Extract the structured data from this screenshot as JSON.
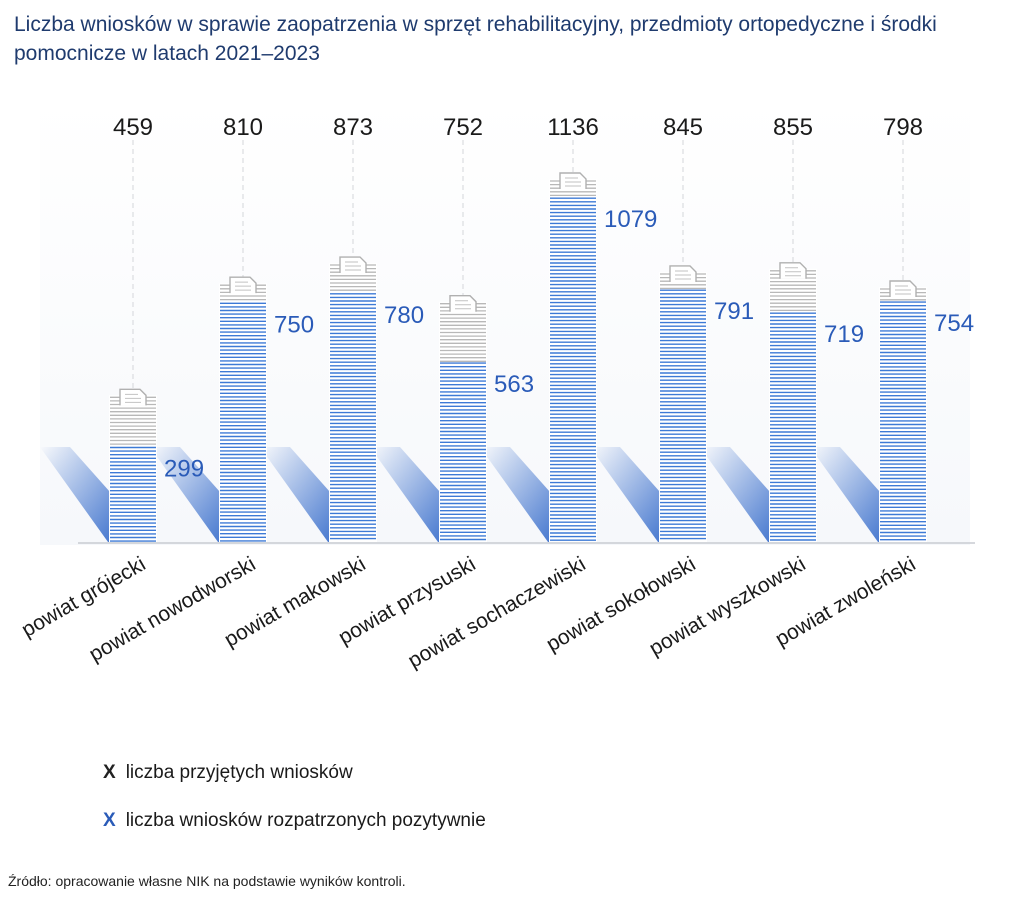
{
  "chart_data": {
    "type": "bar",
    "title": "Liczba wniosków w sprawie zaopatrzenia w sprzęt rehabilitacyjny, przedmioty ortopedyczne i środki pomocnicze w latach 2021–2023",
    "categories": [
      "powiat grójecki",
      "powiat nowodworski",
      "powiat makowski",
      "powiat przysuski",
      "powiat sochaczewiski",
      "powiat sokołowski",
      "powiat wyszkowski",
      "powiat zwoleński"
    ],
    "series": [
      {
        "name": "liczba przyjętych wniosków",
        "values": [
          459,
          810,
          873,
          752,
          1136,
          845,
          855,
          798
        ],
        "color": "#222222"
      },
      {
        "name": "liczba wniosków rozpatrzonych pozytywnie",
        "values": [
          299,
          750,
          780,
          563,
          1079,
          791,
          719,
          754
        ],
        "color": "#2a5bb8"
      }
    ],
    "ylim": [
      0,
      1136
    ],
    "legend_position": "bottom-left",
    "grid": false
  },
  "legend": {
    "marker": "X",
    "items": [
      {
        "label": "liczba przyjętych wniosków",
        "color": "#222222"
      },
      {
        "label": "liczba wniosków rozpatrzonych pozytywnie",
        "color": "#2a5bb8"
      }
    ]
  },
  "source": "Źródło: opracowanie własne NIK na podstawie wyników kontroli.",
  "colors": {
    "positive": "#2a5bb8",
    "positive_line": "#3d7ad6",
    "received_line": "#b8b8b8",
    "shadow": "#3a6fcc"
  }
}
